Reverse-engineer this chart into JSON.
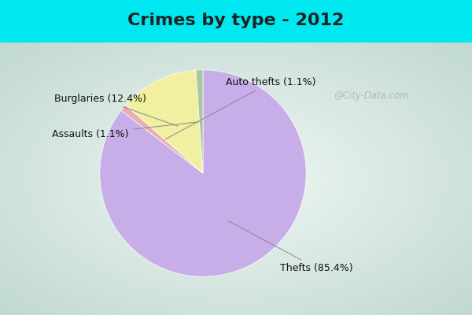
{
  "title": "Crimes by type - 2012",
  "slices": [
    {
      "label": "Thefts (85.4%)",
      "value": 85.4,
      "color": "#c8aee8"
    },
    {
      "label": "Auto thefts (1.1%)",
      "value": 1.1,
      "color": "#e8b0b0"
    },
    {
      "label": "Burglaries (12.4%)",
      "value": 12.4,
      "color": "#f0f0a0"
    },
    {
      "label": "Assaults (1.1%)",
      "value": 1.1,
      "color": "#a8c8a0"
    }
  ],
  "bg_cyan": "#00e8f0",
  "title_fontsize": 16,
  "label_fontsize": 9,
  "watermark": "@City-Data.com",
  "title_color": "#222222"
}
